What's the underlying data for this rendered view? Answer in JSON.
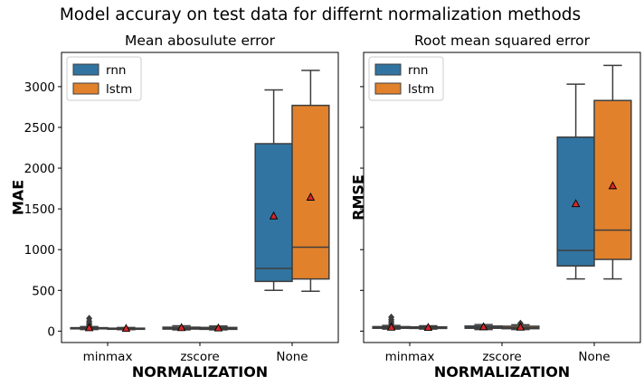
{
  "suptitle": "Model accuray on test data for differnt normalization methods",
  "colors": {
    "rnn": "#3274a1",
    "lstm": "#e1812c",
    "line": "#3d3d3d",
    "mean_marker": "#d62728",
    "frame": "#000000"
  },
  "chart_data": [
    {
      "type": "box",
      "title": "Mean abosulute error",
      "xlabel": "NORMALIZATION",
      "ylabel": "MAE",
      "categories": [
        "minmax",
        "zscore",
        "None"
      ],
      "yticks": [
        0,
        500,
        1000,
        1500,
        2000,
        2500,
        3000
      ],
      "ylim": [
        -140,
        3420
      ],
      "legend": {
        "position": "top-left",
        "entries": [
          "rnn",
          "lstm"
        ]
      },
      "grid": false,
      "show_yticklabels": true,
      "series": [
        {
          "name": "rnn",
          "boxes": [
            {
              "category": "minmax",
              "whislo": 20,
              "q1": 28,
              "med": 33,
              "q3": 42,
              "whishi": 55,
              "mean": 38,
              "fliers": [
                75,
                95,
                120,
                155
              ]
            },
            {
              "category": "zscore",
              "whislo": 15,
              "q1": 25,
              "med": 35,
              "q3": 48,
              "whishi": 65,
              "mean": 40,
              "fliers": []
            },
            {
              "category": "None",
              "whislo": 500,
              "q1": 610,
              "med": 770,
              "q3": 2300,
              "whishi": 2960,
              "mean": 1410,
              "fliers": []
            }
          ]
        },
        {
          "name": "lstm",
          "boxes": [
            {
              "category": "minmax",
              "whislo": 18,
              "q1": 24,
              "med": 28,
              "q3": 36,
              "whishi": 45,
              "mean": 30,
              "fliers": []
            },
            {
              "category": "zscore",
              "whislo": 15,
              "q1": 22,
              "med": 30,
              "q3": 45,
              "whishi": 62,
              "mean": 35,
              "fliers": []
            },
            {
              "category": "None",
              "whislo": 490,
              "q1": 640,
              "med": 1030,
              "q3": 2770,
              "whishi": 3200,
              "mean": 1640,
              "fliers": []
            }
          ]
        }
      ]
    },
    {
      "type": "box",
      "title": "Root mean squared error",
      "xlabel": "NORMALIZATION",
      "ylabel": "RMSE",
      "categories": [
        "minmax",
        "zscore",
        "None"
      ],
      "yticks": [
        0,
        500,
        1000,
        1500,
        2000,
        2500,
        3000
      ],
      "ylim": [
        -140,
        3420
      ],
      "legend": {
        "position": "top-left",
        "entries": [
          "rnn",
          "lstm"
        ]
      },
      "grid": false,
      "show_yticklabels": false,
      "series": [
        {
          "name": "rnn",
          "boxes": [
            {
              "category": "minmax",
              "whislo": 25,
              "q1": 35,
              "med": 42,
              "q3": 55,
              "whishi": 70,
              "mean": 45,
              "fliers": [
                90,
                115,
                140,
                170
              ]
            },
            {
              "category": "zscore",
              "whislo": 20,
              "q1": 35,
              "med": 45,
              "q3": 62,
              "whishi": 80,
              "mean": 50,
              "fliers": []
            },
            {
              "category": "None",
              "whislo": 640,
              "q1": 800,
              "med": 990,
              "q3": 2380,
              "whishi": 3030,
              "mean": 1560,
              "fliers": []
            }
          ]
        },
        {
          "name": "lstm",
          "boxes": [
            {
              "category": "minmax",
              "whislo": 25,
              "q1": 33,
              "med": 40,
              "q3": 52,
              "whishi": 65,
              "mean": 42,
              "fliers": []
            },
            {
              "category": "zscore",
              "whislo": 20,
              "q1": 30,
              "med": 42,
              "q3": 60,
              "whishi": 78,
              "mean": 45,
              "fliers": [
                95
              ]
            },
            {
              "category": "None",
              "whislo": 640,
              "q1": 880,
              "med": 1240,
              "q3": 2830,
              "whishi": 3260,
              "mean": 1780,
              "fliers": []
            }
          ]
        }
      ]
    }
  ]
}
